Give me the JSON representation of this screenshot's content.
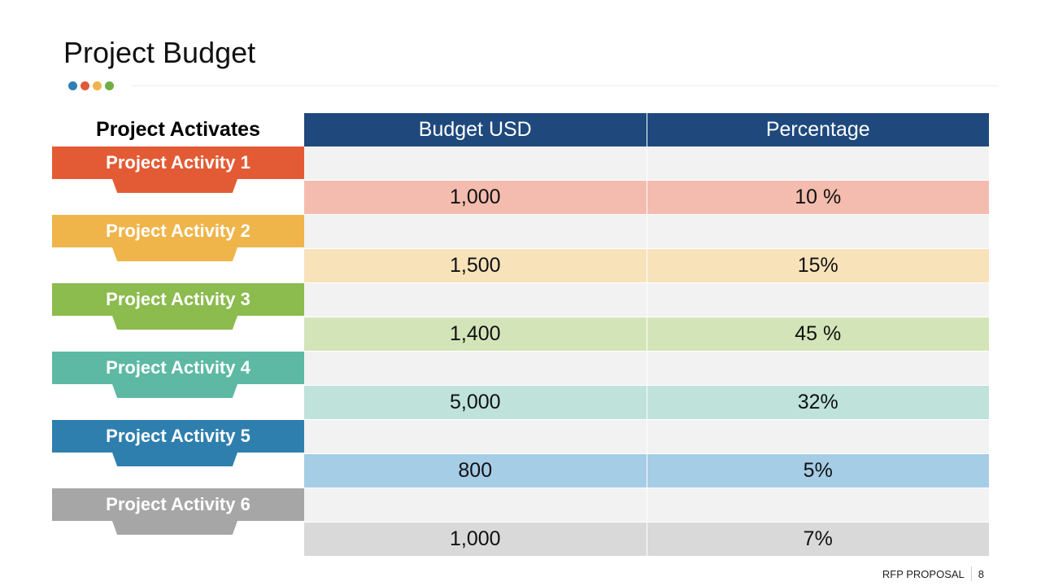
{
  "title": "Project Budget",
  "dots": [
    "#2e7fb8",
    "#e05a3a",
    "#f0b34a",
    "#6fae46"
  ],
  "table": {
    "label_header": "Project Activates",
    "columns": [
      "Budget USD",
      "Percentage"
    ],
    "header_color": "#1f497d"
  },
  "activities": [
    {
      "name": "Project Activity 1",
      "color": "#e35b35",
      "light": "#f4bcae",
      "budget": "1,000",
      "percentage": "10 %"
    },
    {
      "name": "Project Activity 2",
      "color": "#efb54a",
      "light": "#f7e2ba",
      "budget": "1,500",
      "percentage": "15%"
    },
    {
      "name": "Project Activity 3",
      "color": "#8cbb4e",
      "light": "#d3e5b8",
      "budget": "1,400",
      "percentage": "45 %"
    },
    {
      "name": "Project Activity 4",
      "color": "#5db9a3",
      "light": "#bfe3db",
      "budget": "5,000",
      "percentage": "32%"
    },
    {
      "name": "Project Activity 5",
      "color": "#2f7fae",
      "light": "#a6cde6",
      "budget": "800",
      "percentage": "5%"
    },
    {
      "name": "Project Activity 6",
      "color": "#a6a6a6",
      "light": "#d9d9d9",
      "budget": "1,000",
      "percentage": "7%"
    }
  ],
  "empty_row_color": "#f2f2f2",
  "footer": {
    "label": "RFP PROPOSAL",
    "page": "8"
  }
}
